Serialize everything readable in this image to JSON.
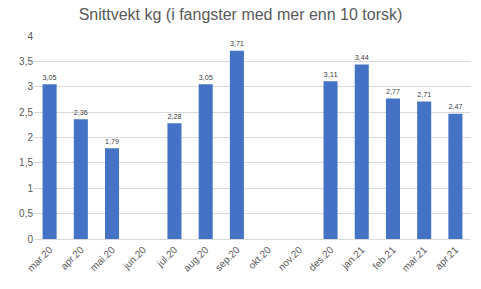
{
  "chart_data": {
    "type": "bar",
    "title": "Snittvekt kg (i fangster med mer enn 10 torsk)",
    "categories": [
      "mar.20",
      "apr.20",
      "mai.20",
      "jun.20",
      "jul.20",
      "aug.20",
      "sep.20",
      "okt.20",
      "nov.20",
      "des.20",
      "jan.21",
      "feb.21",
      "mar.21",
      "apr.21"
    ],
    "values": [
      3.05,
      2.36,
      1.79,
      null,
      2.28,
      3.05,
      3.71,
      null,
      null,
      3.11,
      3.44,
      2.77,
      2.71,
      2.47
    ],
    "value_labels": [
      "3,05",
      "2,36",
      "1,79",
      null,
      "2,28",
      "3,05",
      "3,71",
      null,
      null,
      "3,11",
      "3,44",
      "2,77",
      "2,71",
      "2,47"
    ],
    "color": "#4472c4",
    "ylim": [
      0,
      4
    ],
    "yticks": [
      0,
      {
        "value": 0.5,
        "label": "0,5"
      },
      1,
      {
        "value": 1.5,
        "label": "1,5"
      },
      2,
      {
        "value": 2.5,
        "label": "2,5"
      },
      3,
      {
        "value": 3.5,
        "label": "3,5"
      },
      4
    ],
    "grid": true,
    "data_labels": true
  }
}
